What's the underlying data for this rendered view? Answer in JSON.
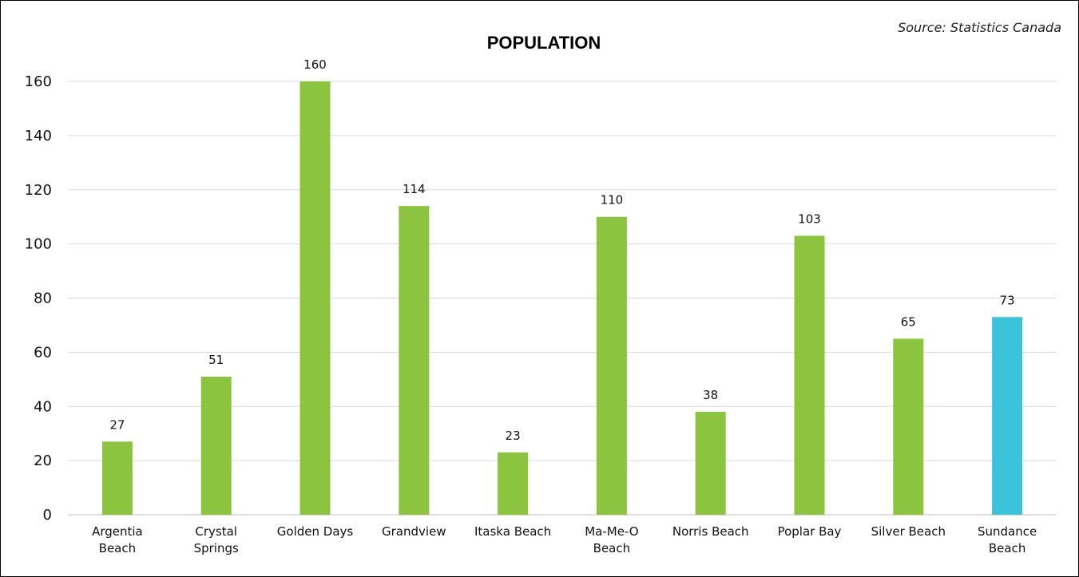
{
  "chart_data": {
    "type": "bar",
    "title": "POPULATION",
    "source": "Source: Statistics Canada",
    "xlabel": "",
    "ylabel": "",
    "ylim": [
      0,
      160
    ],
    "y_ticks": [
      0,
      20,
      40,
      60,
      80,
      100,
      120,
      140,
      160
    ],
    "grid": "horizontal",
    "categories": [
      "Argentia Beach",
      "Crystal Springs",
      "Golden Days",
      "Grandview",
      "Itaska Beach",
      "Ma-Me-O Beach",
      "Norris Beach",
      "Poplar Bay",
      "Silver Beach",
      "Sundance Beach"
    ],
    "values": [
      27,
      51,
      160,
      114,
      23,
      110,
      38,
      103,
      65,
      73
    ],
    "data_labels": true,
    "colors": {
      "bar": "#8bc43f",
      "highlight": "#3bc3dc",
      "highlight_category": "Sundance Beach"
    }
  }
}
